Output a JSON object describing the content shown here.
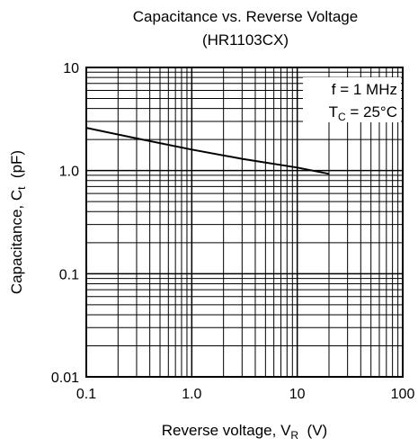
{
  "chart_data": {
    "type": "line",
    "title": "Capacitance vs. Reverse Voltage",
    "subtitle": "(HR1103CX)",
    "xlabel": {
      "main": "Reverse voltage, V",
      "sub": "R",
      "unit": "(V)"
    },
    "ylabel": {
      "main": "Capacitance, C",
      "sub": "t",
      "unit": "(pF)"
    },
    "x_scale": "log",
    "y_scale": "log",
    "xlim": [
      0.1,
      100
    ],
    "ylim": [
      0.01,
      10
    ],
    "x_ticks": [
      {
        "value": 0.1,
        "label": "0.1"
      },
      {
        "value": 1,
        "label": "1.0"
      },
      {
        "value": 10,
        "label": "10"
      },
      {
        "value": 100,
        "label": "100"
      }
    ],
    "y_ticks": [
      {
        "value": 0.01,
        "label": "0.01"
      },
      {
        "value": 0.1,
        "label": "0.1"
      },
      {
        "value": 1,
        "label": "1.0"
      },
      {
        "value": 10,
        "label": "10"
      }
    ],
    "grid": true,
    "annotations": [
      {
        "text": "f = 1 MHz"
      },
      {
        "main": "T",
        "sub": "C",
        "rest": " = 25°C"
      }
    ],
    "series": [
      {
        "points": [
          {
            "x": 0.1,
            "y": 2.6
          },
          {
            "x": 0.3,
            "y": 2.05
          },
          {
            "x": 1,
            "y": 1.6
          },
          {
            "x": 3,
            "y": 1.3
          },
          {
            "x": 10,
            "y": 1.07
          },
          {
            "x": 20,
            "y": 0.93
          }
        ]
      }
    ]
  }
}
